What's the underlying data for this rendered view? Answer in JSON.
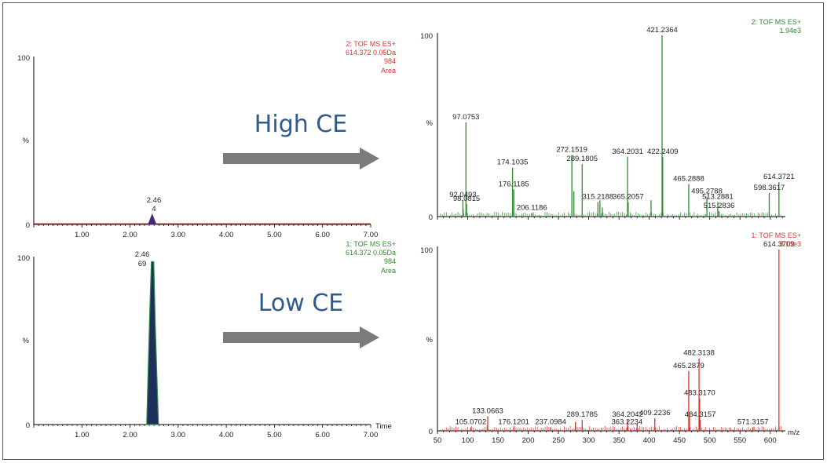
{
  "labels": {
    "high_ce": "High CE",
    "low_ce": "Low CE"
  },
  "colors": {
    "red": "#d9342b",
    "green": "#2e8a2e",
    "arrow": "#7b7b7b",
    "ce_text": "#2f5a8c",
    "peak_fill": "#1d2f5a"
  },
  "chromatograms": [
    {
      "header": [
        "2: TOF MS ES+",
        "614.372 0.05Da",
        "984",
        "Area"
      ],
      "y_top_label": "100",
      "y_bottom_label": "0",
      "y_unit": "%",
      "peak_label_line1": "2.46",
      "peak_label_line2": "4",
      "x_title": ""
    },
    {
      "header": [
        "1: TOF MS ES+",
        "614.372 0.05Da",
        "984",
        "Area"
      ],
      "y_top_label": "100",
      "y_bottom_label": "0",
      "y_unit": "%",
      "peak_label_line1": "2.46",
      "peak_label_line2": "69",
      "x_title": "Time"
    }
  ],
  "spectra": [
    {
      "header": [
        "2: TOF MS ES+",
        "1.94e3"
      ],
      "y_top_label": "100",
      "y_bottom_label": "0",
      "y_unit": "%",
      "x_title": ""
    },
    {
      "header": [
        "1: TOF MS ES+",
        "3.10e3"
      ],
      "y_top_label": "100",
      "y_bottom_label": "0",
      "y_unit": "%",
      "x_title": "m/z"
    }
  ],
  "chart_data": [
    {
      "type": "line",
      "title": "",
      "xlabel": "",
      "ylabel": "%",
      "xlim": [
        0,
        7
      ],
      "ylim": [
        0,
        100
      ],
      "x_ticks": [
        "1.00",
        "2.00",
        "3.00",
        "4.00",
        "5.00",
        "6.00",
        "7.00"
      ],
      "peak": {
        "rt": 2.46,
        "height": 6,
        "area": "4"
      }
    },
    {
      "type": "line",
      "title": "",
      "xlabel": "Time",
      "ylabel": "%",
      "xlim": [
        0,
        7
      ],
      "ylim": [
        0,
        100
      ],
      "x_ticks": [
        "1.00",
        "2.00",
        "3.00",
        "4.00",
        "5.00",
        "6.00",
        "7.00"
      ],
      "peak": {
        "rt": 2.46,
        "height": 97,
        "area": "69"
      }
    },
    {
      "type": "bar",
      "title": "",
      "xlabel": "",
      "ylabel": "%",
      "xlim": [
        50,
        625
      ],
      "ylim": [
        0,
        100
      ],
      "peaks": [
        {
          "mz": 92.0493,
          "rel": 9,
          "label": "92.0493"
        },
        {
          "mz": 97.0753,
          "rel": 52,
          "label": "97.0753"
        },
        {
          "mz": 98.0815,
          "rel": 7,
          "label": "98.0815"
        },
        {
          "mz": 174.1035,
          "rel": 27,
          "label": "174.1035"
        },
        {
          "mz": 176.1185,
          "rel": 15,
          "label": "176.1185"
        },
        {
          "mz": 206.1186,
          "rel": 2,
          "label": "206.1186"
        },
        {
          "mz": 272.1519,
          "rel": 34,
          "label": "272.1519"
        },
        {
          "mz": 289.1805,
          "rel": 29,
          "label": "289.1805"
        },
        {
          "mz": 315.2188,
          "rel": 8,
          "label": "315.2188"
        },
        {
          "mz": 364.2031,
          "rel": 33,
          "label": "364.2031"
        },
        {
          "mz": 365.2057,
          "rel": 8,
          "label": "365.2057"
        },
        {
          "mz": 421.2364,
          "rel": 100,
          "label": "421.2364"
        },
        {
          "mz": 422.2409,
          "rel": 33,
          "label": "422.2409"
        },
        {
          "mz": 465.2888,
          "rel": 18,
          "label": "465.2888"
        },
        {
          "mz": 495.2788,
          "rel": 11,
          "label": "495.2788"
        },
        {
          "mz": 513.2881,
          "rel": 8,
          "label": "513.2881"
        },
        {
          "mz": 515.2836,
          "rel": 3,
          "label": "515.2836"
        },
        {
          "mz": 598.3617,
          "rel": 13,
          "label": "598.3617"
        },
        {
          "mz": 614.3721,
          "rel": 19,
          "label": "614.3721"
        },
        {
          "mz": 275.5,
          "rel": 14,
          "label": ""
        },
        {
          "mz": 318.5,
          "rel": 9,
          "label": ""
        },
        {
          "mz": 322.5,
          "rel": 5,
          "label": ""
        },
        {
          "mz": 403,
          "rel": 9,
          "label": ""
        },
        {
          "mz": 92.5,
          "rel": 4,
          "label": ""
        }
      ]
    },
    {
      "type": "bar",
      "title": "",
      "xlabel": "m/z",
      "ylabel": "%",
      "xlim": [
        50,
        625
      ],
      "ylim": [
        0,
        100
      ],
      "x_ticks": [
        "50",
        "100",
        "150",
        "200",
        "250",
        "300",
        "350",
        "400",
        "450",
        "500",
        "550",
        "600"
      ],
      "peaks": [
        {
          "mz": 105.0702,
          "rel": 2,
          "label": "105.0702"
        },
        {
          "mz": 133.0663,
          "rel": 8,
          "label": "133.0663"
        },
        {
          "mz": 176.1201,
          "rel": 2,
          "label": "176.1201"
        },
        {
          "mz": 237.0984,
          "rel": 2,
          "label": "237.0984"
        },
        {
          "mz": 289.1785,
          "rel": 6,
          "label": "289.1785"
        },
        {
          "mz": 363.2234,
          "rel": 2,
          "label": "363.2234"
        },
        {
          "mz": 364.2042,
          "rel": 6,
          "label": "364.2042"
        },
        {
          "mz": 409.2236,
          "rel": 7,
          "label": "409.2236"
        },
        {
          "mz": 465.2879,
          "rel": 33,
          "label": "465.2879"
        },
        {
          "mz": 482.3138,
          "rel": 40,
          "label": "482.3138"
        },
        {
          "mz": 483.317,
          "rel": 18,
          "label": "483.3170"
        },
        {
          "mz": 484.3157,
          "rel": 6,
          "label": "484.3157"
        },
        {
          "mz": 571.3157,
          "rel": 2,
          "label": "571.3157"
        },
        {
          "mz": 614.3709,
          "rel": 100,
          "label": "614.3709"
        },
        {
          "mz": 278,
          "rel": 5,
          "label": ""
        },
        {
          "mz": 380,
          "rel": 4,
          "label": ""
        },
        {
          "mz": 466.5,
          "rel": 8,
          "label": ""
        }
      ]
    }
  ]
}
